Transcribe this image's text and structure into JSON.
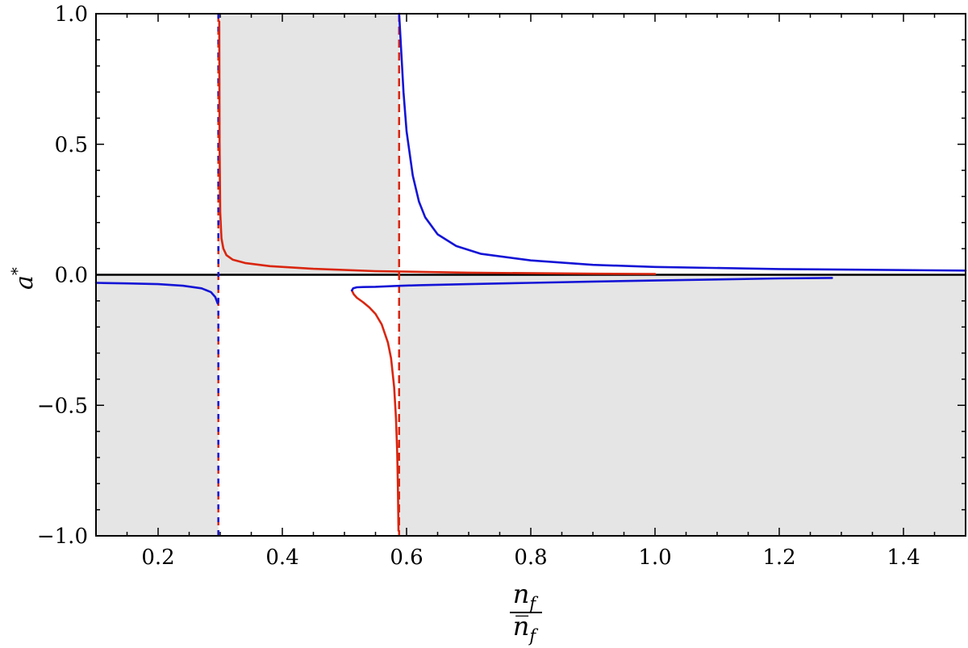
{
  "chart_data": {
    "type": "line",
    "title": "",
    "xlabel": {
      "numerator": "n",
      "numerator_sub": "f",
      "denominator": "n̅",
      "denominator_sub": "f"
    },
    "ylabel": {
      "base": "a",
      "sup": "*"
    },
    "xlim": [
      0.1,
      1.5
    ],
    "ylim": [
      -1.0,
      1.0
    ],
    "x_ticks": [
      0.2,
      0.4,
      0.6,
      0.8,
      1.0,
      1.2,
      1.4
    ],
    "x_tick_labels": [
      "0.2",
      "0.4",
      "0.6",
      "0.8",
      "1.0",
      "1.2",
      "1.4"
    ],
    "y_ticks": [
      -1.0,
      -0.5,
      0.0,
      0.5,
      1.0
    ],
    "y_tick_labels": [
      "−1.0",
      "−0.5",
      "0.0",
      "0.5",
      "1.0"
    ],
    "grid": false,
    "legend": "none",
    "colors": {
      "red": "#d9260f",
      "blue": "#1414d6",
      "shade": "#e5e5e5",
      "axis": "#000000"
    },
    "shaded_regions": [
      {
        "x": [
          0.1,
          0.297
        ],
        "y": [
          -1.0,
          0.0
        ]
      },
      {
        "x": [
          0.297,
          0.588
        ],
        "y": [
          0.0,
          1.0
        ]
      },
      {
        "x": [
          0.588,
          1.5
        ],
        "y": [
          -1.0,
          0.0
        ]
      }
    ],
    "reference_lines": [
      {
        "orientation": "horizontal",
        "y": 0.0,
        "color": "#000000",
        "style": "solid"
      },
      {
        "orientation": "vertical",
        "x": 0.297,
        "color": "#d9260f",
        "style": "dashed"
      },
      {
        "orientation": "vertical",
        "x": 0.297,
        "color": "#1414d6",
        "style": "dashed"
      },
      {
        "orientation": "vertical",
        "x": 0.588,
        "color": "#d9260f",
        "style": "dashed"
      }
    ],
    "series": [
      {
        "color": "#1414d6",
        "style": "solid",
        "x": [
          0.1,
          0.15,
          0.2,
          0.24,
          0.27,
          0.285,
          0.292,
          0.296
        ],
        "y": [
          -0.031,
          -0.033,
          -0.036,
          -0.042,
          -0.052,
          -0.066,
          -0.085,
          -0.11
        ]
      },
      {
        "color": "#d9260f",
        "style": "solid",
        "x": [
          0.2985,
          0.299,
          0.3,
          0.302,
          0.305,
          0.31,
          0.32,
          0.34,
          0.38,
          0.45,
          0.55,
          0.7,
          0.9,
          1.0
        ],
        "y": [
          0.97,
          0.5,
          0.24,
          0.14,
          0.1,
          0.075,
          0.058,
          0.045,
          0.033,
          0.023,
          0.014,
          0.008,
          0.004,
          0.003
        ]
      },
      {
        "color": "#d9260f",
        "style": "solid",
        "x": [
          0.512,
          0.515,
          0.52,
          0.53,
          0.54,
          0.55,
          0.56,
          0.57,
          0.575,
          0.58,
          0.583,
          0.585,
          0.586,
          0.587
        ],
        "y": [
          -0.06,
          -0.075,
          -0.088,
          -0.105,
          -0.125,
          -0.15,
          -0.19,
          -0.26,
          -0.32,
          -0.43,
          -0.55,
          -0.68,
          -0.8,
          -0.98
        ]
      },
      {
        "color": "#1414d6",
        "style": "solid",
        "x": [
          0.512,
          0.514,
          0.52,
          0.53,
          0.55,
          0.58,
          0.62,
          0.7,
          0.8,
          0.9,
          1.0,
          1.1,
          1.2,
          1.285
        ],
        "y": [
          -0.06,
          -0.052,
          -0.048,
          -0.047,
          -0.046,
          -0.043,
          -0.04,
          -0.036,
          -0.031,
          -0.026,
          -0.022,
          -0.018,
          -0.014,
          -0.012
        ]
      },
      {
        "color": "#1414d6",
        "style": "solid",
        "x": [
          0.588,
          0.595,
          0.6,
          0.61,
          0.62,
          0.63,
          0.65,
          0.68,
          0.72,
          0.8,
          0.9,
          1.0,
          1.2,
          1.4,
          1.5
        ],
        "y": [
          1.0,
          0.7,
          0.55,
          0.38,
          0.28,
          0.22,
          0.155,
          0.11,
          0.08,
          0.055,
          0.038,
          0.03,
          0.022,
          0.018,
          0.016
        ]
      }
    ]
  }
}
